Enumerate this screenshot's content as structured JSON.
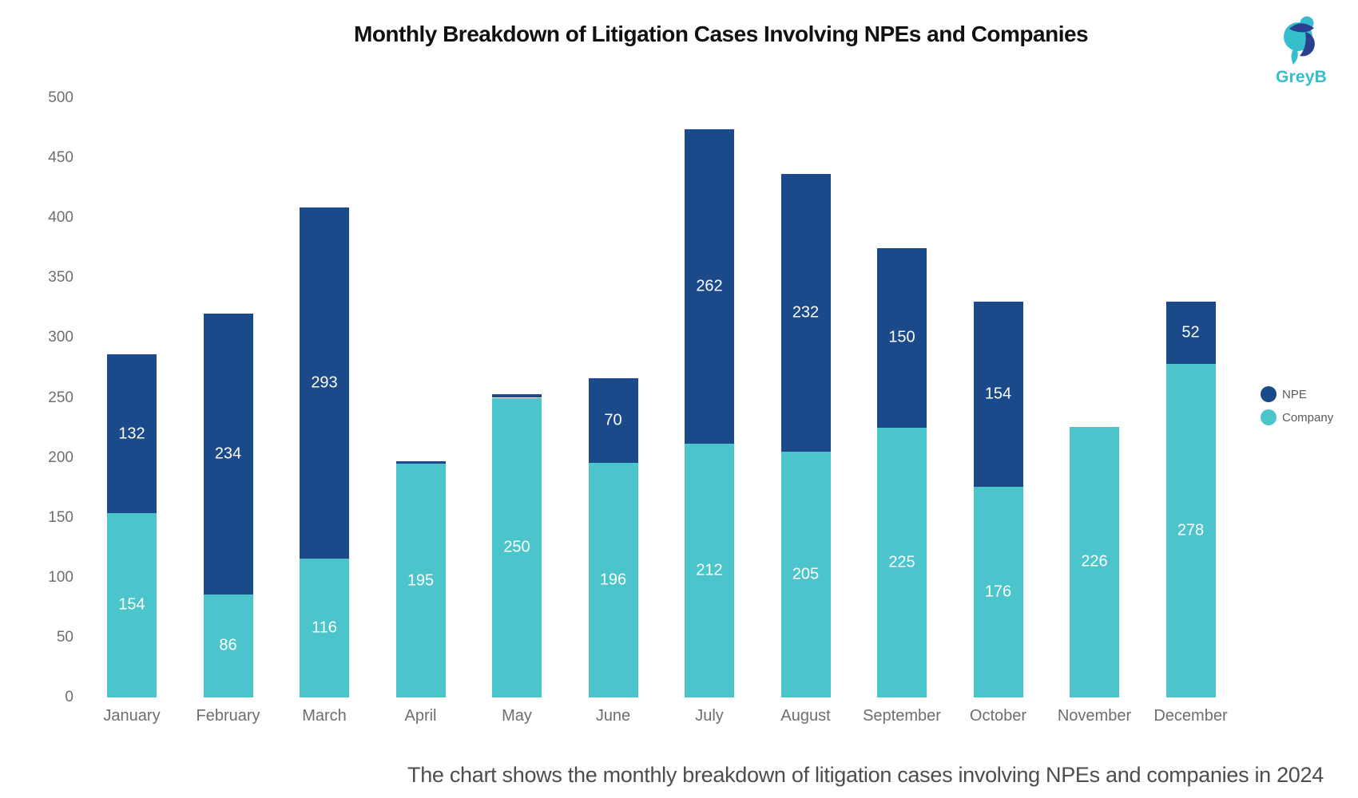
{
  "title": "Monthly Breakdown of Litigation Cases Involving NPEs and Companies",
  "caption": "The chart shows the monthly breakdown of litigation cases involving NPEs and companies in 2024",
  "logo": {
    "text": "GreyB",
    "teal": "#35bfcc",
    "navy": "#2c3e8f"
  },
  "legend": [
    {
      "label": "NPE",
      "color": "#1b4a8a"
    },
    {
      "label": "Company",
      "color": "#4bc5cb"
    }
  ],
  "chart_data": {
    "type": "bar",
    "stacked": true,
    "title": "Monthly Breakdown of Litigation Cases Involving NPEs and Companies",
    "categories": [
      "January",
      "February",
      "March",
      "April",
      "May",
      "June",
      "July",
      "August",
      "September",
      "October",
      "November",
      "December"
    ],
    "series": [
      {
        "name": "Company",
        "color": "#4bc5cb",
        "values": [
          154,
          86,
          116,
          195,
          250,
          196,
          212,
          205,
          225,
          176,
          226,
          278
        ]
      },
      {
        "name": "NPE",
        "color": "#1b4a8a",
        "values": [
          132,
          234,
          293,
          2,
          3,
          70,
          262,
          232,
          150,
          154,
          0,
          52
        ]
      }
    ],
    "totals": [
      286,
      320,
      409,
      197,
      253,
      266,
      474,
      437,
      375,
      330,
      226,
      330
    ],
    "xlabel": "",
    "ylabel": "",
    "ylim": [
      0,
      500
    ],
    "ytick_step": 50,
    "grid": false,
    "legend_position": "right",
    "value_labels": "inside-center-white"
  }
}
